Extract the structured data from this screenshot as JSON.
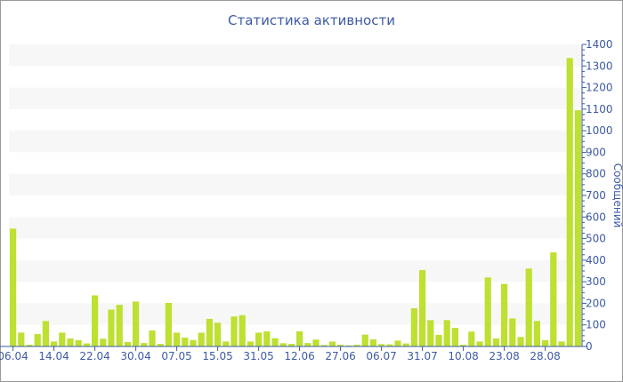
{
  "chart_data": {
    "type": "bar",
    "title": "Статистика активности",
    "ylabel": "Сообщений",
    "xlabel": "",
    "ylim": [
      0,
      1400
    ],
    "y_ticks": [
      0,
      100,
      200,
      300,
      400,
      500,
      600,
      700,
      800,
      900,
      1000,
      1100,
      1200,
      1300,
      1400
    ],
    "y_axis_position": "right",
    "grid": "alternating horizontal bands",
    "x_tick_labels": [
      "06.04",
      "14.04",
      "22.04",
      "30.04",
      "07.05",
      "15.05",
      "31.05",
      "12.06",
      "27.06",
      "06.07",
      "31.07",
      "10.08",
      "23.08",
      "28.08"
    ],
    "x_tick_every_n_bars": 5,
    "values": [
      546,
      64,
      8,
      58,
      118,
      23,
      64,
      37,
      29,
      14,
      237,
      36,
      171,
      193,
      21,
      208,
      16,
      74,
      12,
      202,
      64,
      41,
      30,
      64,
      128,
      110,
      23,
      139,
      145,
      23,
      64,
      70,
      38,
      15,
      12,
      70,
      16,
      32,
      7,
      23,
      8,
      5,
      8,
      55,
      33,
      11,
      10,
      27,
      14,
      177,
      354,
      122,
      54,
      122,
      86,
      8,
      69,
      23,
      320,
      37,
      290,
      130,
      44,
      361,
      118,
      29,
      436,
      23,
      1337,
      1095
    ],
    "colors": {
      "bar": "#bde031",
      "axis": "#3e5aa6",
      "band": "#f7f7f7"
    }
  }
}
